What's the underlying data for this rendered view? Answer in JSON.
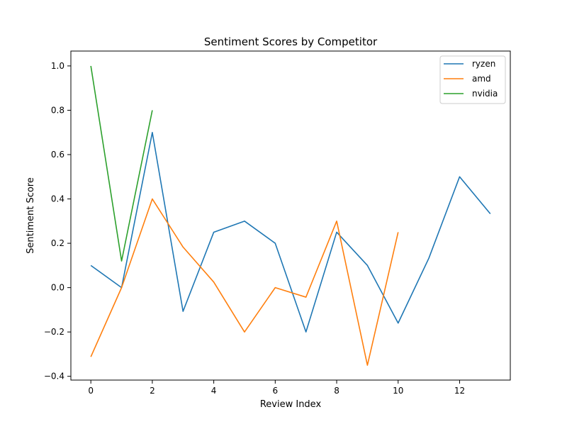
{
  "chart_data": {
    "type": "line",
    "title": "Sentiment Scores by Competitor",
    "xlabel": "Review Index",
    "ylabel": "Sentiment Score",
    "xlim": [
      -0.65,
      13.65
    ],
    "ylim": [
      -0.417,
      1.067
    ],
    "x_ticks": [
      0,
      2,
      4,
      6,
      8,
      10,
      12
    ],
    "x_tick_labels": [
      "0",
      "2",
      "4",
      "6",
      "8",
      "10",
      "12"
    ],
    "y_ticks": [
      -0.4,
      -0.2,
      0.0,
      0.2,
      0.4,
      0.6,
      0.8,
      1.0
    ],
    "y_tick_labels": [
      "−0.4",
      "−0.2",
      "0.0",
      "0.2",
      "0.4",
      "0.6",
      "0.8",
      "1.0"
    ],
    "grid": false,
    "legend_position": "top-right",
    "series": [
      {
        "name": "ryzen",
        "color": "#1f77b4",
        "x": [
          0,
          1,
          2,
          3,
          4,
          5,
          6,
          7,
          8,
          9,
          10,
          11,
          12,
          13
        ],
        "values": [
          0.1,
          0.0,
          0.7,
          -0.107,
          0.25,
          0.3,
          0.2,
          -0.2,
          0.25,
          0.1,
          -0.16,
          0.133,
          0.5,
          0.333
        ]
      },
      {
        "name": "amd",
        "color": "#ff7f0e",
        "x": [
          0,
          1,
          2,
          3,
          4,
          5,
          6,
          7,
          8,
          9,
          10
        ],
        "values": [
          -0.312,
          0.0,
          0.4,
          0.183,
          0.025,
          -0.2,
          0.0,
          -0.043,
          0.3,
          -0.35,
          0.25
        ]
      },
      {
        "name": "nvidia",
        "color": "#2ca02c",
        "x": [
          0,
          1,
          2
        ],
        "values": [
          1.0,
          0.12,
          0.8
        ]
      }
    ]
  }
}
